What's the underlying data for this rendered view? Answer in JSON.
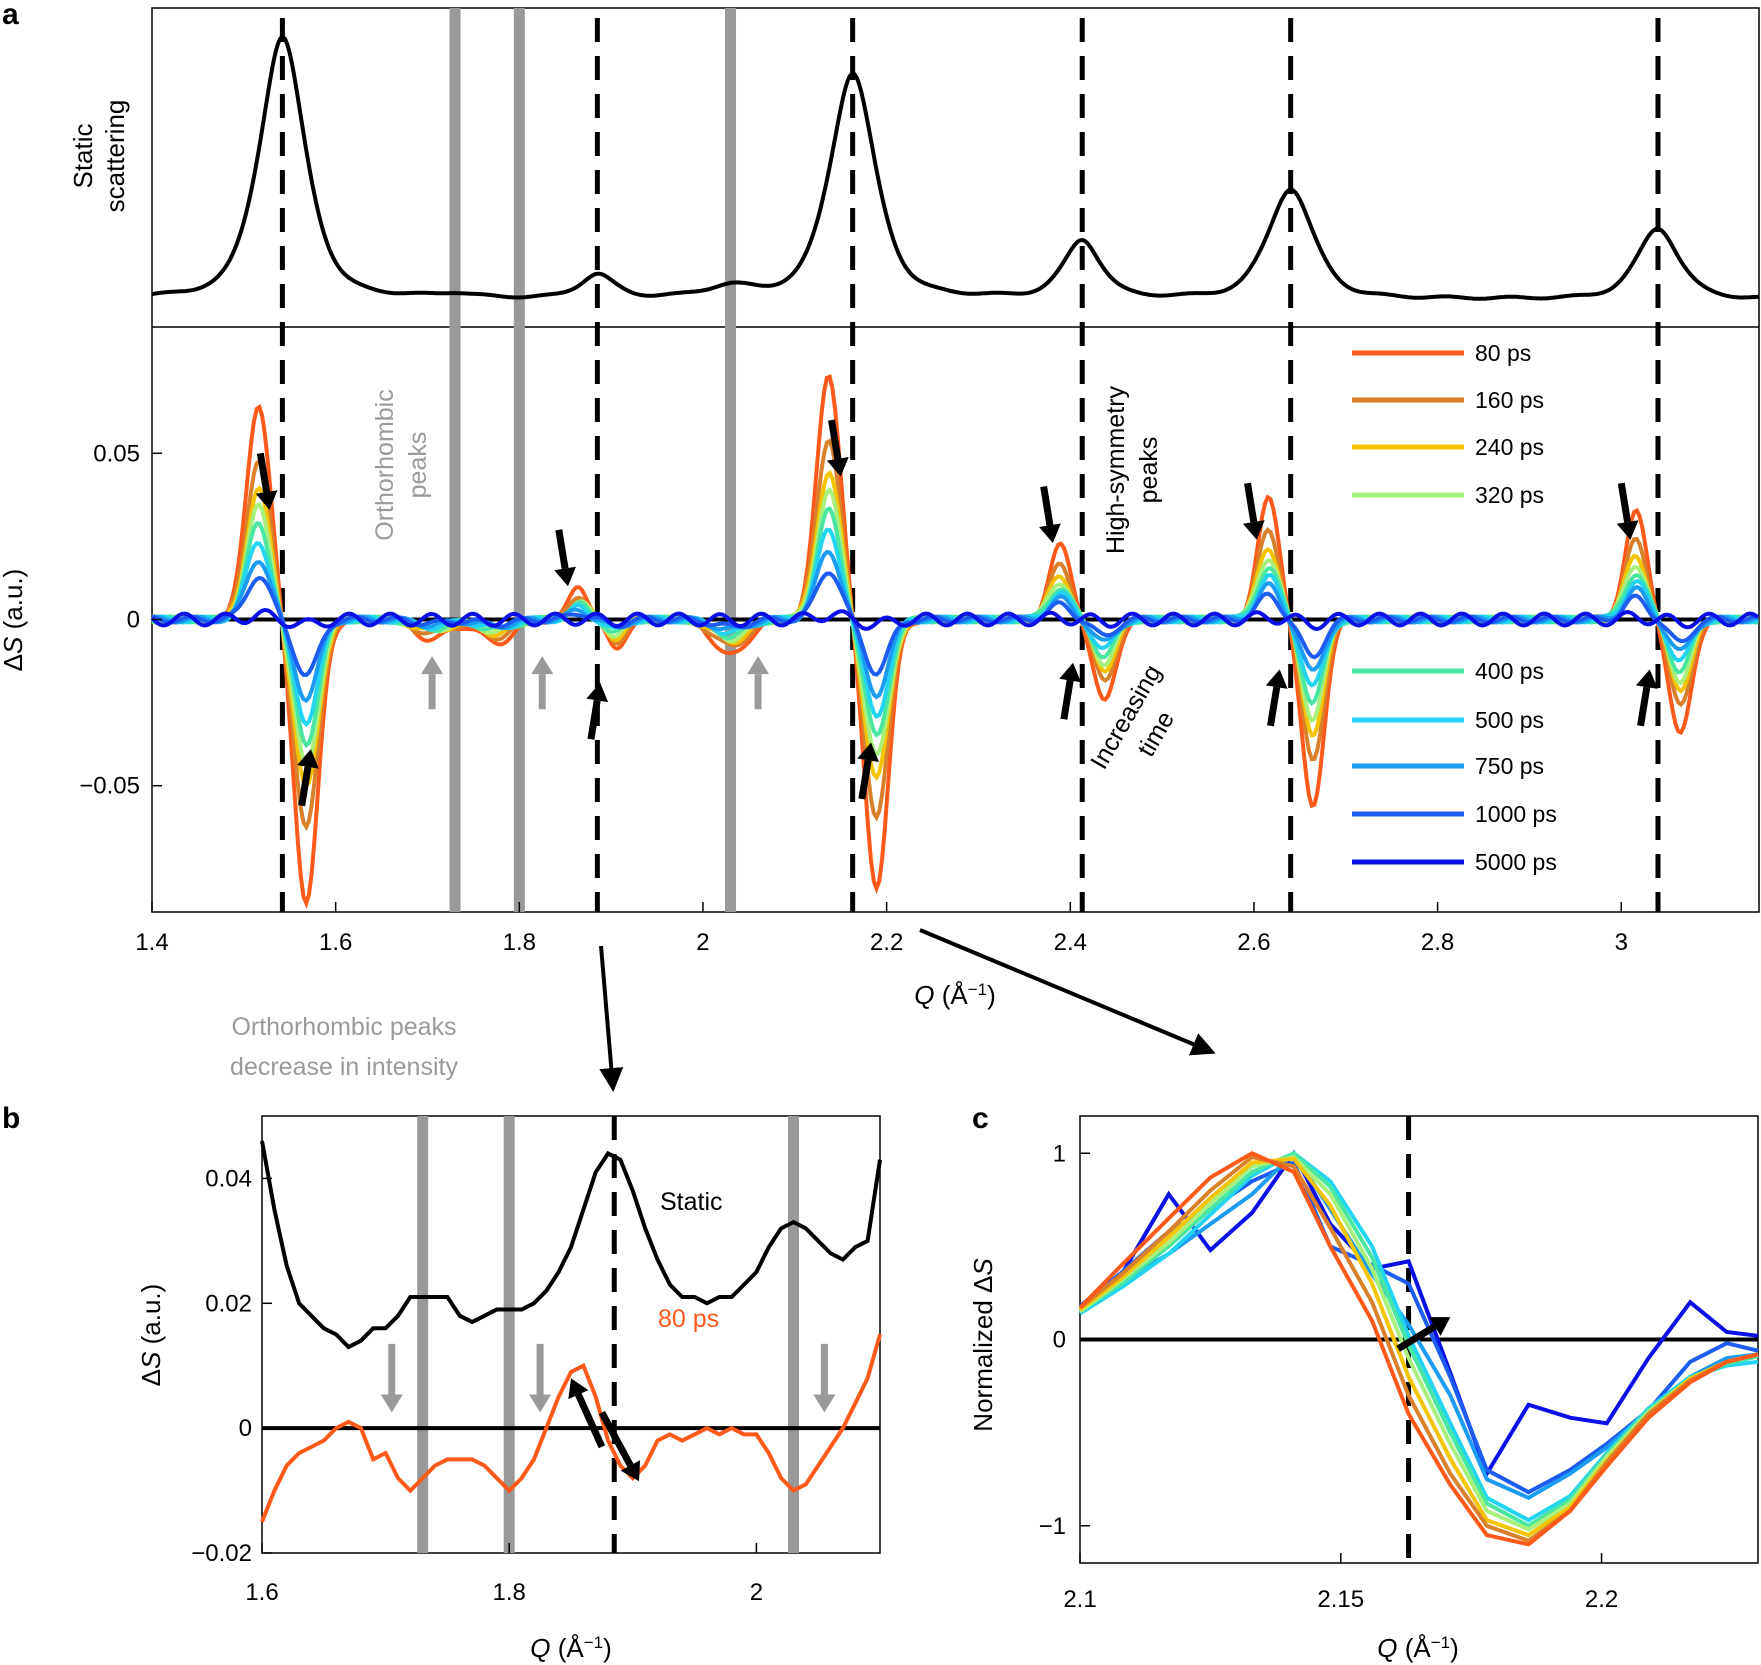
{
  "colors": {
    "black": "#000000",
    "gray": "#999999",
    "annotation_gray": "#9a9a9a",
    "orange_80ps": "#ff5a1a"
  },
  "labels": {
    "panel_a": "a",
    "panel_b": "b",
    "panel_c": "c",
    "static_ylabel_line1": "Static",
    "static_ylabel_line2": "scattering",
    "orthorhombic_line1": "Orthorhombic",
    "orthorhombic_line2": "peaks",
    "high_symmetry_line1": "High-symmetry",
    "high_symmetry_line2": "peaks",
    "increasing_line1": "Increasing",
    "increasing_line2": "time",
    "ortho_decrease_line1": "Orthorhombic peaks",
    "ortho_decrease_line2": "decrease in intensity",
    "static_b": "Static",
    "ps80_b": "80 ps"
  },
  "chart_data": [
    {
      "id": "a",
      "type": "line",
      "title": "",
      "xlabel": "Q (Å⁻¹)",
      "ylabel": "ΔS (a.u.)",
      "top_ylabel": "Static scattering",
      "xlim": [
        1.4,
        3.15
      ],
      "ylim": [
        -0.088,
        0.088
      ],
      "xticks": [
        "1.4",
        "1.6",
        "1.8",
        "2",
        "2.2",
        "2.4",
        "2.6",
        "2.8",
        "3"
      ],
      "yticks": [
        "−0.05",
        "0",
        "0.05"
      ],
      "high_symmetry_peaks_Q": [
        1.542,
        1.885,
        2.163,
        2.413,
        2.64,
        3.04
      ],
      "orthorhombic_peaks_Q": [
        1.73,
        1.8,
        2.03
      ],
      "static_peaks": [
        {
          "q": 1.542,
          "amp": 1.0,
          "w": 0.027
        },
        {
          "q": 1.885,
          "amp": 0.09,
          "w": 0.02
        },
        {
          "q": 2.163,
          "amp": 0.86,
          "w": 0.027
        },
        {
          "q": 2.413,
          "amp": 0.22,
          "w": 0.022
        },
        {
          "q": 2.64,
          "amp": 0.42,
          "w": 0.027
        },
        {
          "q": 3.04,
          "amp": 0.27,
          "w": 0.025
        },
        {
          "q": 1.73,
          "amp": 0.015,
          "w": 0.02
        },
        {
          "q": 2.03,
          "amp": 0.04,
          "w": 0.03
        }
      ],
      "delta_features": [
        {
          "q": 1.542,
          "pos": 0.065,
          "neg": 0.085,
          "w": 0.013
        },
        {
          "q": 2.163,
          "pos": 0.074,
          "neg": 0.08,
          "w": 0.013
        },
        {
          "q": 2.413,
          "pos": 0.022,
          "neg": 0.025,
          "w": 0.012
        },
        {
          "q": 2.64,
          "pos": 0.036,
          "neg": 0.057,
          "w": 0.012
        },
        {
          "q": 3.04,
          "pos": 0.032,
          "neg": 0.035,
          "w": 0.012
        },
        {
          "q": 1.885,
          "pos": 0.01,
          "neg": 0.009,
          "w": 0.01
        }
      ],
      "ortho_dips": [
        {
          "q": 1.705,
          "depth": 0.006
        },
        {
          "q": 1.775,
          "depth": 0.007
        },
        {
          "q": 2.03,
          "depth": 0.011
        }
      ],
      "series_order": [
        "80 ps",
        "160 ps",
        "240 ps",
        "320 ps",
        "400 ps",
        "500 ps",
        "750 ps",
        "1000 ps",
        "5000 ps"
      ],
      "series": [
        {
          "name": "80 ps",
          "color": "#ff5a1a",
          "scale": 1.0
        },
        {
          "name": "160 ps",
          "color": "#d9802a",
          "scale": 0.74
        },
        {
          "name": "240 ps",
          "color": "#f5c400",
          "scale": 0.6
        },
        {
          "name": "320 ps",
          "color": "#a8f07c",
          "scale": 0.52
        },
        {
          "name": "400 ps",
          "color": "#48e6a0",
          "scale": 0.44
        },
        {
          "name": "500 ps",
          "color": "#22d4f0",
          "scale": 0.36
        },
        {
          "name": "750 ps",
          "color": "#1c9cf0",
          "scale": 0.28
        },
        {
          "name": "1000 ps",
          "color": "#1c5cf0",
          "scale": 0.2
        },
        {
          "name": "5000 ps",
          "color": "#0a10e6",
          "scale": 0.02
        }
      ],
      "legend_placement": "right, split in two groups"
    },
    {
      "id": "b",
      "type": "line",
      "xlabel": "Q (Å⁻¹)",
      "ylabel": "ΔS (a.u.)",
      "xlim": [
        1.6,
        2.1
      ],
      "ylim": [
        -0.02,
        0.05
      ],
      "xticks": [
        "1.6",
        "1.8",
        "2"
      ],
      "yticks": [
        "−0.02",
        "0",
        "0.02",
        "0.04"
      ],
      "dashed_Q": [
        1.885
      ],
      "gray_bars_Q": [
        1.73,
        1.8,
        2.03
      ],
      "gray_arrow_Q": [
        1.705,
        1.825,
        2.055
      ],
      "series": [
        {
          "name": "Static",
          "color": "#000000",
          "x": [
            1.6,
            1.61,
            1.62,
            1.63,
            1.64,
            1.65,
            1.66,
            1.67,
            1.68,
            1.69,
            1.7,
            1.71,
            1.72,
            1.73,
            1.74,
            1.75,
            1.76,
            1.77,
            1.78,
            1.79,
            1.8,
            1.81,
            1.82,
            1.83,
            1.84,
            1.85,
            1.86,
            1.87,
            1.88,
            1.89,
            1.9,
            1.91,
            1.92,
            1.93,
            1.94,
            1.95,
            1.96,
            1.97,
            1.98,
            1.99,
            2.0,
            2.01,
            2.02,
            2.03,
            2.04,
            2.05,
            2.06,
            2.07,
            2.08,
            2.09,
            2.1
          ],
          "values": [
            0.046,
            0.035,
            0.026,
            0.02,
            0.018,
            0.016,
            0.015,
            0.013,
            0.014,
            0.016,
            0.016,
            0.018,
            0.021,
            0.021,
            0.021,
            0.021,
            0.018,
            0.017,
            0.018,
            0.019,
            0.019,
            0.019,
            0.02,
            0.022,
            0.025,
            0.029,
            0.035,
            0.041,
            0.044,
            0.043,
            0.038,
            0.032,
            0.027,
            0.023,
            0.021,
            0.021,
            0.02,
            0.021,
            0.021,
            0.023,
            0.025,
            0.029,
            0.032,
            0.033,
            0.032,
            0.03,
            0.028,
            0.027,
            0.029,
            0.03,
            0.043
          ]
        },
        {
          "name": "80 ps",
          "color": "#ff5a1a",
          "x": [
            1.6,
            1.61,
            1.62,
            1.63,
            1.64,
            1.65,
            1.66,
            1.67,
            1.68,
            1.69,
            1.7,
            1.71,
            1.72,
            1.73,
            1.74,
            1.75,
            1.76,
            1.77,
            1.78,
            1.79,
            1.8,
            1.81,
            1.82,
            1.83,
            1.84,
            1.85,
            1.86,
            1.87,
            1.88,
            1.89,
            1.9,
            1.91,
            1.92,
            1.93,
            1.94,
            1.95,
            1.96,
            1.97,
            1.98,
            1.99,
            2.0,
            2.01,
            2.02,
            2.03,
            2.04,
            2.05,
            2.06,
            2.07,
            2.08,
            2.09,
            2.1
          ],
          "values": [
            -0.015,
            -0.01,
            -0.006,
            -0.004,
            -0.003,
            -0.002,
            0.0,
            0.001,
            0.0,
            -0.005,
            -0.004,
            -0.008,
            -0.01,
            -0.008,
            -0.006,
            -0.005,
            -0.005,
            -0.005,
            -0.006,
            -0.008,
            -0.01,
            -0.008,
            -0.005,
            0.0,
            0.005,
            0.009,
            0.01,
            0.005,
            -0.002,
            -0.006,
            -0.008,
            -0.006,
            -0.002,
            -0.001,
            -0.002,
            -0.001,
            0.0,
            -0.001,
            0.0,
            -0.001,
            -0.001,
            -0.004,
            -0.008,
            -0.01,
            -0.009,
            -0.006,
            -0.003,
            0.0,
            0.004,
            0.008,
            0.015
          ]
        }
      ]
    },
    {
      "id": "c",
      "type": "line",
      "xlabel": "Q (Å⁻¹)",
      "ylabel": "Normalized ΔS",
      "xlim": [
        2.1,
        2.23
      ],
      "ylim": [
        -1.2,
        1.2
      ],
      "xticks": [
        "2.1",
        "2.15",
        "2.2"
      ],
      "yticks": [
        "−1",
        "0",
        "1"
      ],
      "dashed_Q": [
        2.163
      ],
      "x": [
        2.1,
        2.108,
        2.117,
        2.125,
        2.133,
        2.141,
        2.148,
        2.156,
        2.163,
        2.171,
        2.178,
        2.186,
        2.194,
        2.201,
        2.209,
        2.217,
        2.224,
        2.23
      ],
      "series": [
        {
          "name": "80 ps",
          "color": "#ff5a1a",
          "values": [
            0.17,
            0.4,
            0.65,
            0.87,
            1.0,
            0.9,
            0.5,
            0.1,
            -0.4,
            -0.78,
            -1.05,
            -1.1,
            -0.92,
            -0.68,
            -0.42,
            -0.23,
            -0.12,
            -0.08
          ]
        },
        {
          "name": "160 ps",
          "color": "#d9802a",
          "values": [
            0.17,
            0.35,
            0.58,
            0.8,
            0.98,
            0.93,
            0.6,
            0.2,
            -0.3,
            -0.72,
            -1.0,
            -1.08,
            -0.92,
            -0.66,
            -0.4,
            -0.22,
            -0.12,
            -0.08
          ]
        },
        {
          "name": "240 ps",
          "color": "#f5c400",
          "values": [
            0.16,
            0.33,
            0.55,
            0.76,
            0.95,
            0.97,
            0.72,
            0.3,
            -0.2,
            -0.64,
            -0.97,
            -1.05,
            -0.9,
            -0.65,
            -0.4,
            -0.21,
            -0.12,
            -0.08
          ]
        },
        {
          "name": "320 ps",
          "color": "#a8f07c",
          "values": [
            0.15,
            0.32,
            0.52,
            0.73,
            0.93,
            0.98,
            0.78,
            0.38,
            -0.1,
            -0.56,
            -0.92,
            -1.02,
            -0.88,
            -0.63,
            -0.39,
            -0.21,
            -0.12,
            -0.08
          ]
        },
        {
          "name": "400 ps",
          "color": "#48e6a0",
          "values": [
            0.15,
            0.3,
            0.5,
            0.7,
            0.9,
            1.0,
            0.82,
            0.44,
            -0.03,
            -0.5,
            -0.88,
            -1.0,
            -0.86,
            -0.62,
            -0.38,
            -0.21,
            -0.13,
            -0.09
          ]
        },
        {
          "name": "500 ps",
          "color": "#22d4f0",
          "values": [
            0.14,
            0.28,
            0.46,
            0.67,
            0.88,
            1.0,
            0.85,
            0.5,
            0.02,
            -0.45,
            -0.85,
            -0.97,
            -0.84,
            -0.61,
            -0.37,
            -0.2,
            -0.14,
            -0.12
          ]
        },
        {
          "name": "750 ps",
          "color": "#1c9cf0",
          "values": [
            0.16,
            0.31,
            0.46,
            0.62,
            0.78,
            1.0,
            0.7,
            0.35,
            0.08,
            -0.3,
            -0.75,
            -0.85,
            -0.72,
            -0.58,
            -0.38,
            -0.2,
            -0.1,
            -0.08
          ]
        },
        {
          "name": "1000 ps",
          "color": "#1c5cf0",
          "values": [
            0.18,
            0.36,
            0.58,
            0.7,
            0.85,
            0.95,
            0.5,
            0.4,
            0.3,
            -0.2,
            -0.7,
            -0.82,
            -0.7,
            -0.56,
            -0.38,
            -0.12,
            -0.02,
            -0.06
          ]
        },
        {
          "name": "5000 ps",
          "color": "#0a10e6",
          "values": [
            0.15,
            0.35,
            0.78,
            0.48,
            0.68,
            1.0,
            0.62,
            0.38,
            0.42,
            -0.18,
            -0.72,
            -0.35,
            -0.42,
            -0.45,
            -0.1,
            0.2,
            0.04,
            0.02
          ]
        }
      ]
    }
  ]
}
